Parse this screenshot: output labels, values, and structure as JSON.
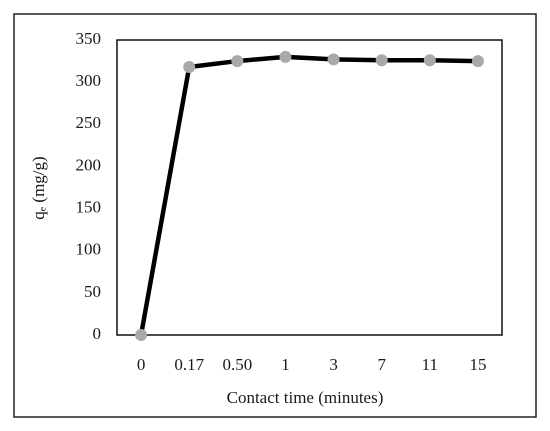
{
  "chart_data": {
    "type": "line",
    "xlabel": "Contact time (minutes)",
    "ylabel": "qₑ (mg/g)",
    "categories": [
      "0",
      "0.17",
      "0.50",
      "1",
      "3",
      "7",
      "11",
      "15"
    ],
    "values": [
      0,
      318,
      325,
      330,
      327,
      326,
      326,
      325
    ],
    "color": "#000000",
    "marker_color": "#a9a9a9",
    "ylim": [
      0,
      350
    ],
    "yticks": [
      0,
      50,
      100,
      150,
      200,
      250,
      300,
      350
    ],
    "grid": false
  }
}
